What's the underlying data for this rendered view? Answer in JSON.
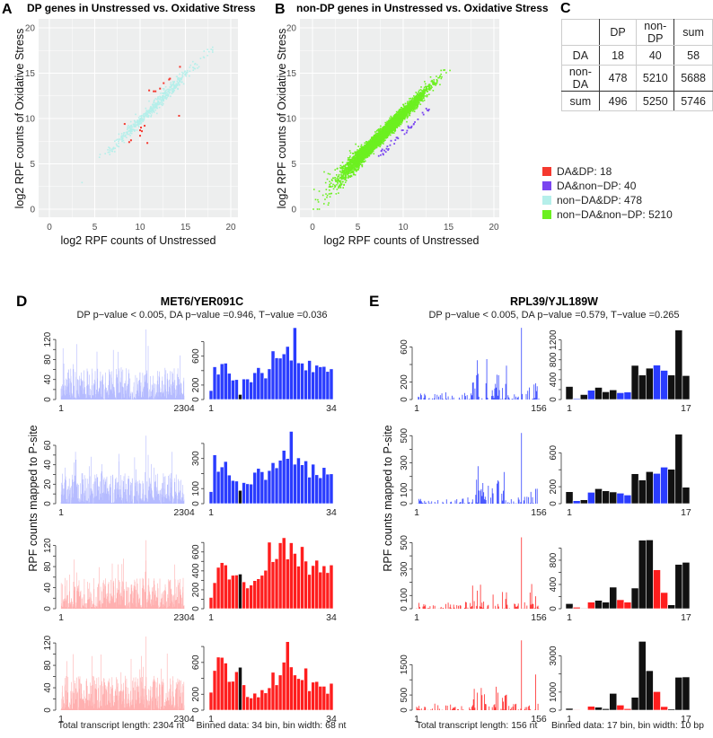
{
  "panelA": {
    "label": "A",
    "title": "DP genes in Unstressed vs. Oxidative Stress",
    "xlabel": "log2 RPF counts of Unstressed",
    "ylabel": "log2 RPF counts of Oxidative Stress"
  },
  "panelB": {
    "label": "B",
    "title": "non-DP genes in Unstressed vs. Oxidative Stress",
    "xlabel": "log2 RPF counts of Unstressed",
    "ylabel": "log2 RPF counts of Oxidative Stress"
  },
  "table": {
    "label": "C",
    "headers": [
      "",
      "DP",
      "non-DP",
      "sum"
    ],
    "rows": [
      [
        "DA",
        "18",
        "40",
        "58"
      ],
      [
        "non-DA",
        "478",
        "5210",
        "5688"
      ],
      [
        "sum",
        "496",
        "5250",
        "5746"
      ]
    ]
  },
  "legend": [
    {
      "label": "DA&DP: 18",
      "color": "#F5392F"
    },
    {
      "label": "DA&non−DP: 40",
      "color": "#7A45F0"
    },
    {
      "label": "non−DA&DP: 478",
      "color": "#B5EFEA"
    },
    {
      "label": "non−DA&non−DP: 5210",
      "color": "#6CF020"
    }
  ],
  "colors": {
    "blue": "#2A3CFF",
    "red": "#FF1E1E",
    "black": "#111111"
  },
  "chart_data": [
    {
      "type": "scatter",
      "panel": "A",
      "title": "DP genes in Unstressed vs. Oxidative Stress",
      "xlabel": "log2 RPF counts of Unstressed",
      "ylabel": "log2 RPF counts of Oxidative Stress",
      "xlim": [
        -1,
        21
      ],
      "ylim": [
        -1,
        21
      ],
      "ticks": [
        0,
        5,
        10,
        15,
        20
      ],
      "grid": true,
      "series": [
        {
          "name": "non-DA&DP",
          "count": 478,
          "trend": "along y=x, x 3.5-18"
        },
        {
          "name": "DA&DP",
          "count": 18,
          "points": [
            [
              14.4,
              15.7
            ],
            [
              13.2,
              14.3
            ],
            [
              13.3,
              14.4
            ],
            [
              12.6,
              13.9
            ],
            [
              12.2,
              13.3
            ],
            [
              11.5,
              13.0
            ],
            [
              11.7,
              13.0
            ],
            [
              11.0,
              13.1
            ],
            [
              14.3,
              10.3
            ],
            [
              8.3,
              9.4
            ],
            [
              10.5,
              9.2
            ],
            [
              10.1,
              9.0
            ],
            [
              10.0,
              8.7
            ],
            [
              10.2,
              8.6
            ],
            [
              10.0,
              8.1
            ],
            [
              9.0,
              7.6
            ],
            [
              8.8,
              7.4
            ],
            [
              10.8,
              7.3
            ]
          ]
        }
      ]
    },
    {
      "type": "scatter",
      "panel": "B",
      "title": "non-DP genes in Unstressed vs. Oxidative Stress",
      "xlabel": "log2 RPF counts of Unstressed",
      "ylabel": "log2 RPF counts of Oxidative Stress",
      "xlim": [
        -1,
        21
      ],
      "ylim": [
        -1,
        21
      ],
      "ticks": [
        0,
        5,
        10,
        15,
        20
      ],
      "grid": true,
      "series": [
        {
          "name": "non-DA&non-DP",
          "count": 5210,
          "trend": "along y=x, x 0-16"
        },
        {
          "name": "DA&non-DP",
          "count": 40,
          "trend": "below diagonal, x 7-13"
        }
      ]
    }
  ],
  "panelD": {
    "label": "D",
    "title": "MET6/YER091C",
    "subtitle": "DP p−value < 0.005, DA p−value =0.946, T−value =0.036",
    "ylabel": "RPF counts mapped to P-site",
    "footer_left": "Total transcript length: 2304 nt",
    "footer_right": "Binned data: 34 bin, bin width: 68 nt",
    "x_left": [
      "1",
      "2304"
    ],
    "x_right": [
      "1",
      "34"
    ],
    "length": 2304,
    "highlight_bins": [
      8
    ],
    "rows": [
      {
        "color": "blue",
        "profile": {
          "ymax": 140,
          "ticks": [
            0,
            20,
            40,
            60,
            80,
            100,
            120
          ],
          "labels": [
            0,
            40,
            80,
            120
          ],
          "peak": 140
        },
        "binned": {
          "ymax": 969,
          "ticks": [
            0,
            200,
            400,
            600,
            800
          ],
          "labels": [
            0,
            200,
            600
          ],
          "values": [
            124,
            453,
            350,
            495,
            503,
            363,
            268,
            276,
            70,
            284,
            284,
            243,
            371,
            441,
            371,
            297,
            424,
            672,
            577,
            573,
            631,
            734,
            544,
            994,
            507,
            503,
            408,
            540,
            383,
            474,
            453,
            457,
            388,
            424
          ]
        }
      },
      {
        "color": "blue",
        "profile": {
          "ymax": 72,
          "ticks": [
            0,
            10,
            20,
            30,
            40,
            50,
            60
          ],
          "labels": [
            0,
            20,
            40,
            60
          ],
          "peak": 70
        },
        "binned": {
          "ymax": 465,
          "ticks": [
            0,
            100,
            200,
            300,
            400
          ],
          "labels": [
            0,
            100,
            300
          ],
          "values": [
            80,
            324,
            214,
            244,
            280,
            190,
            154,
            150,
            88,
            140,
            132,
            130,
            208,
            234,
            212,
            160,
            220,
            272,
            238,
            288,
            354,
            300,
            480,
            262,
            304,
            258,
            284,
            176,
            262,
            192,
            172,
            240,
            196,
            198
          ]
        }
      },
      {
        "color": "red",
        "profile": {
          "ymax": 133,
          "ticks": [
            0,
            20,
            40,
            60,
            80,
            100,
            120
          ],
          "labels": [
            0,
            40,
            80,
            120
          ],
          "peak": 130
        },
        "binned": {
          "ymax": 740,
          "ticks": [
            0,
            100,
            200,
            300,
            400,
            500,
            600,
            700
          ],
          "labels": [
            0,
            200,
            400,
            600
          ],
          "values": [
            119,
            275,
            437,
            487,
            462,
            312,
            353,
            356,
            366,
            284,
            219,
            250,
            297,
            316,
            353,
            406,
            703,
            497,
            528,
            697,
            750,
            525,
            697,
            584,
            450,
            656,
            503,
            362,
            456,
            512,
            387,
            453,
            381,
            462
          ]
        }
      },
      {
        "color": "red",
        "profile": {
          "ymax": 125,
          "ticks": [
            0,
            20,
            40,
            60,
            80,
            100,
            120
          ],
          "labels": [
            0,
            40,
            80,
            120
          ],
          "peak": 136
        },
        "binned": {
          "ymax": 880,
          "ticks": [
            0,
            200,
            400,
            600,
            800
          ],
          "labels": [
            0,
            200,
            600
          ],
          "values": [
            225,
            498,
            667,
            663,
            592,
            360,
            363,
            483,
            539,
            318,
            169,
            153,
            213,
            165,
            255,
            217,
            281,
            476,
            318,
            442,
            603,
            861,
            543,
            442,
            397,
            382,
            528,
            243,
            352,
            360,
            300,
            300,
            210,
            337
          ]
        }
      }
    ]
  },
  "panelE": {
    "label": "E",
    "title": "RPL39/YJL189W",
    "subtitle": "DP p−value < 0.005, DA p−value =0.579, T−value =0.265",
    "ylabel": "RPF counts mapped to P-site",
    "footer_left": "Total transcript length: 156 nt",
    "footer_right": "Binned data: 17 bin, bin width: 10 bp",
    "x_left": [
      "1",
      "156"
    ],
    "x_right": [
      "1",
      "17"
    ],
    "length": 156,
    "colored_bins": [
      1,
      3,
      7,
      8,
      12,
      13
    ],
    "rows": [
      {
        "color": "blue",
        "profile": {
          "ymax": 800,
          "ticks": [
            0,
            200,
            400,
            600
          ],
          "labels": [
            0,
            200,
            600
          ],
          "peak": 820
        },
        "binned": {
          "ymax": 1410,
          "ticks": [
            0,
            200,
            400,
            600,
            800,
            1000,
            1200
          ],
          "labels": [
            0,
            400,
            800,
            1200
          ],
          "values": [
            262,
            19,
            100,
            187,
            244,
            156,
            194,
            137,
            150,
            687,
            493,
            631,
            693,
            587,
            493,
            1400,
            482
          ]
        }
      },
      {
        "color": "blue",
        "profile": {
          "ymax": 515,
          "ticks": [
            0,
            100,
            200,
            300,
            400,
            500
          ],
          "labels": [
            0,
            100,
            300,
            500
          ],
          "peak": 520
        },
        "binned": {
          "ymax": 826,
          "ticks": [
            0,
            200,
            400,
            600
          ],
          "labels": [
            0,
            200,
            600
          ],
          "values": [
            141,
            35,
            46,
            134,
            177,
            152,
            138,
            124,
            102,
            353,
            279,
            378,
            357,
            431,
            406,
            820,
            194
          ]
        }
      },
      {
        "color": "red",
        "profile": {
          "ymax": 530,
          "ticks": [
            0,
            100,
            200,
            300,
            400,
            500
          ],
          "labels": [
            0,
            100,
            300,
            500
          ],
          "peak": 540
        },
        "binned": {
          "ymax": 1155,
          "ticks": [
            0,
            200,
            400,
            600,
            800,
            1000
          ],
          "labels": [
            0,
            400,
            800
          ],
          "values": [
            84,
            25,
            10,
            109,
            138,
            109,
            356,
            148,
            109,
            341,
            1130,
            1135,
            642,
            267,
            64,
            731,
            765
          ]
        }
      },
      {
        "color": "red",
        "profile": {
          "ymax": 2308,
          "ticks": [
            0,
            500,
            1000,
            1500
          ],
          "labels": [
            0,
            500,
            1500
          ],
          "peak": 2300
        },
        "binned": {
          "ymax": 3868,
          "ticks": [
            0,
            1000,
            2000,
            3000
          ],
          "labels": [
            0,
            1000,
            3000
          ],
          "values": [
            99,
            33,
            17,
            215,
            165,
            83,
            926,
            281,
            83,
            711,
            3800,
            2180,
            1025,
            198,
            66,
            1818,
            1835
          ]
        }
      }
    ]
  }
}
